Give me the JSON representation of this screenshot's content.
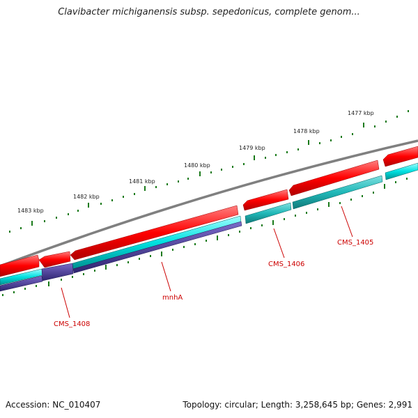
{
  "title": "Clavibacter michiganensis subsp. sepedonicus, complete genom...",
  "accession": "Accession: NC_010407",
  "topology": "Topology: circular; Length: 3,258,645 bp; Genes: 2,991",
  "ticks": [
    "1477 kbp",
    "1478 kbp",
    "1479 kbp",
    "1480 kbp",
    "1481 kbp",
    "1482 kbp",
    "1483 kbp"
  ],
  "genes": [
    "CMS_1405",
    "CMS_1406",
    "mnhA",
    "CMS_1408"
  ],
  "colors": {
    "backbone": "#808080",
    "cds": "#ff0000",
    "gene": "#00d0d0",
    "highlight": "#4a3a9a",
    "tick": "#1a7a1a",
    "label": "#cc0000"
  }
}
